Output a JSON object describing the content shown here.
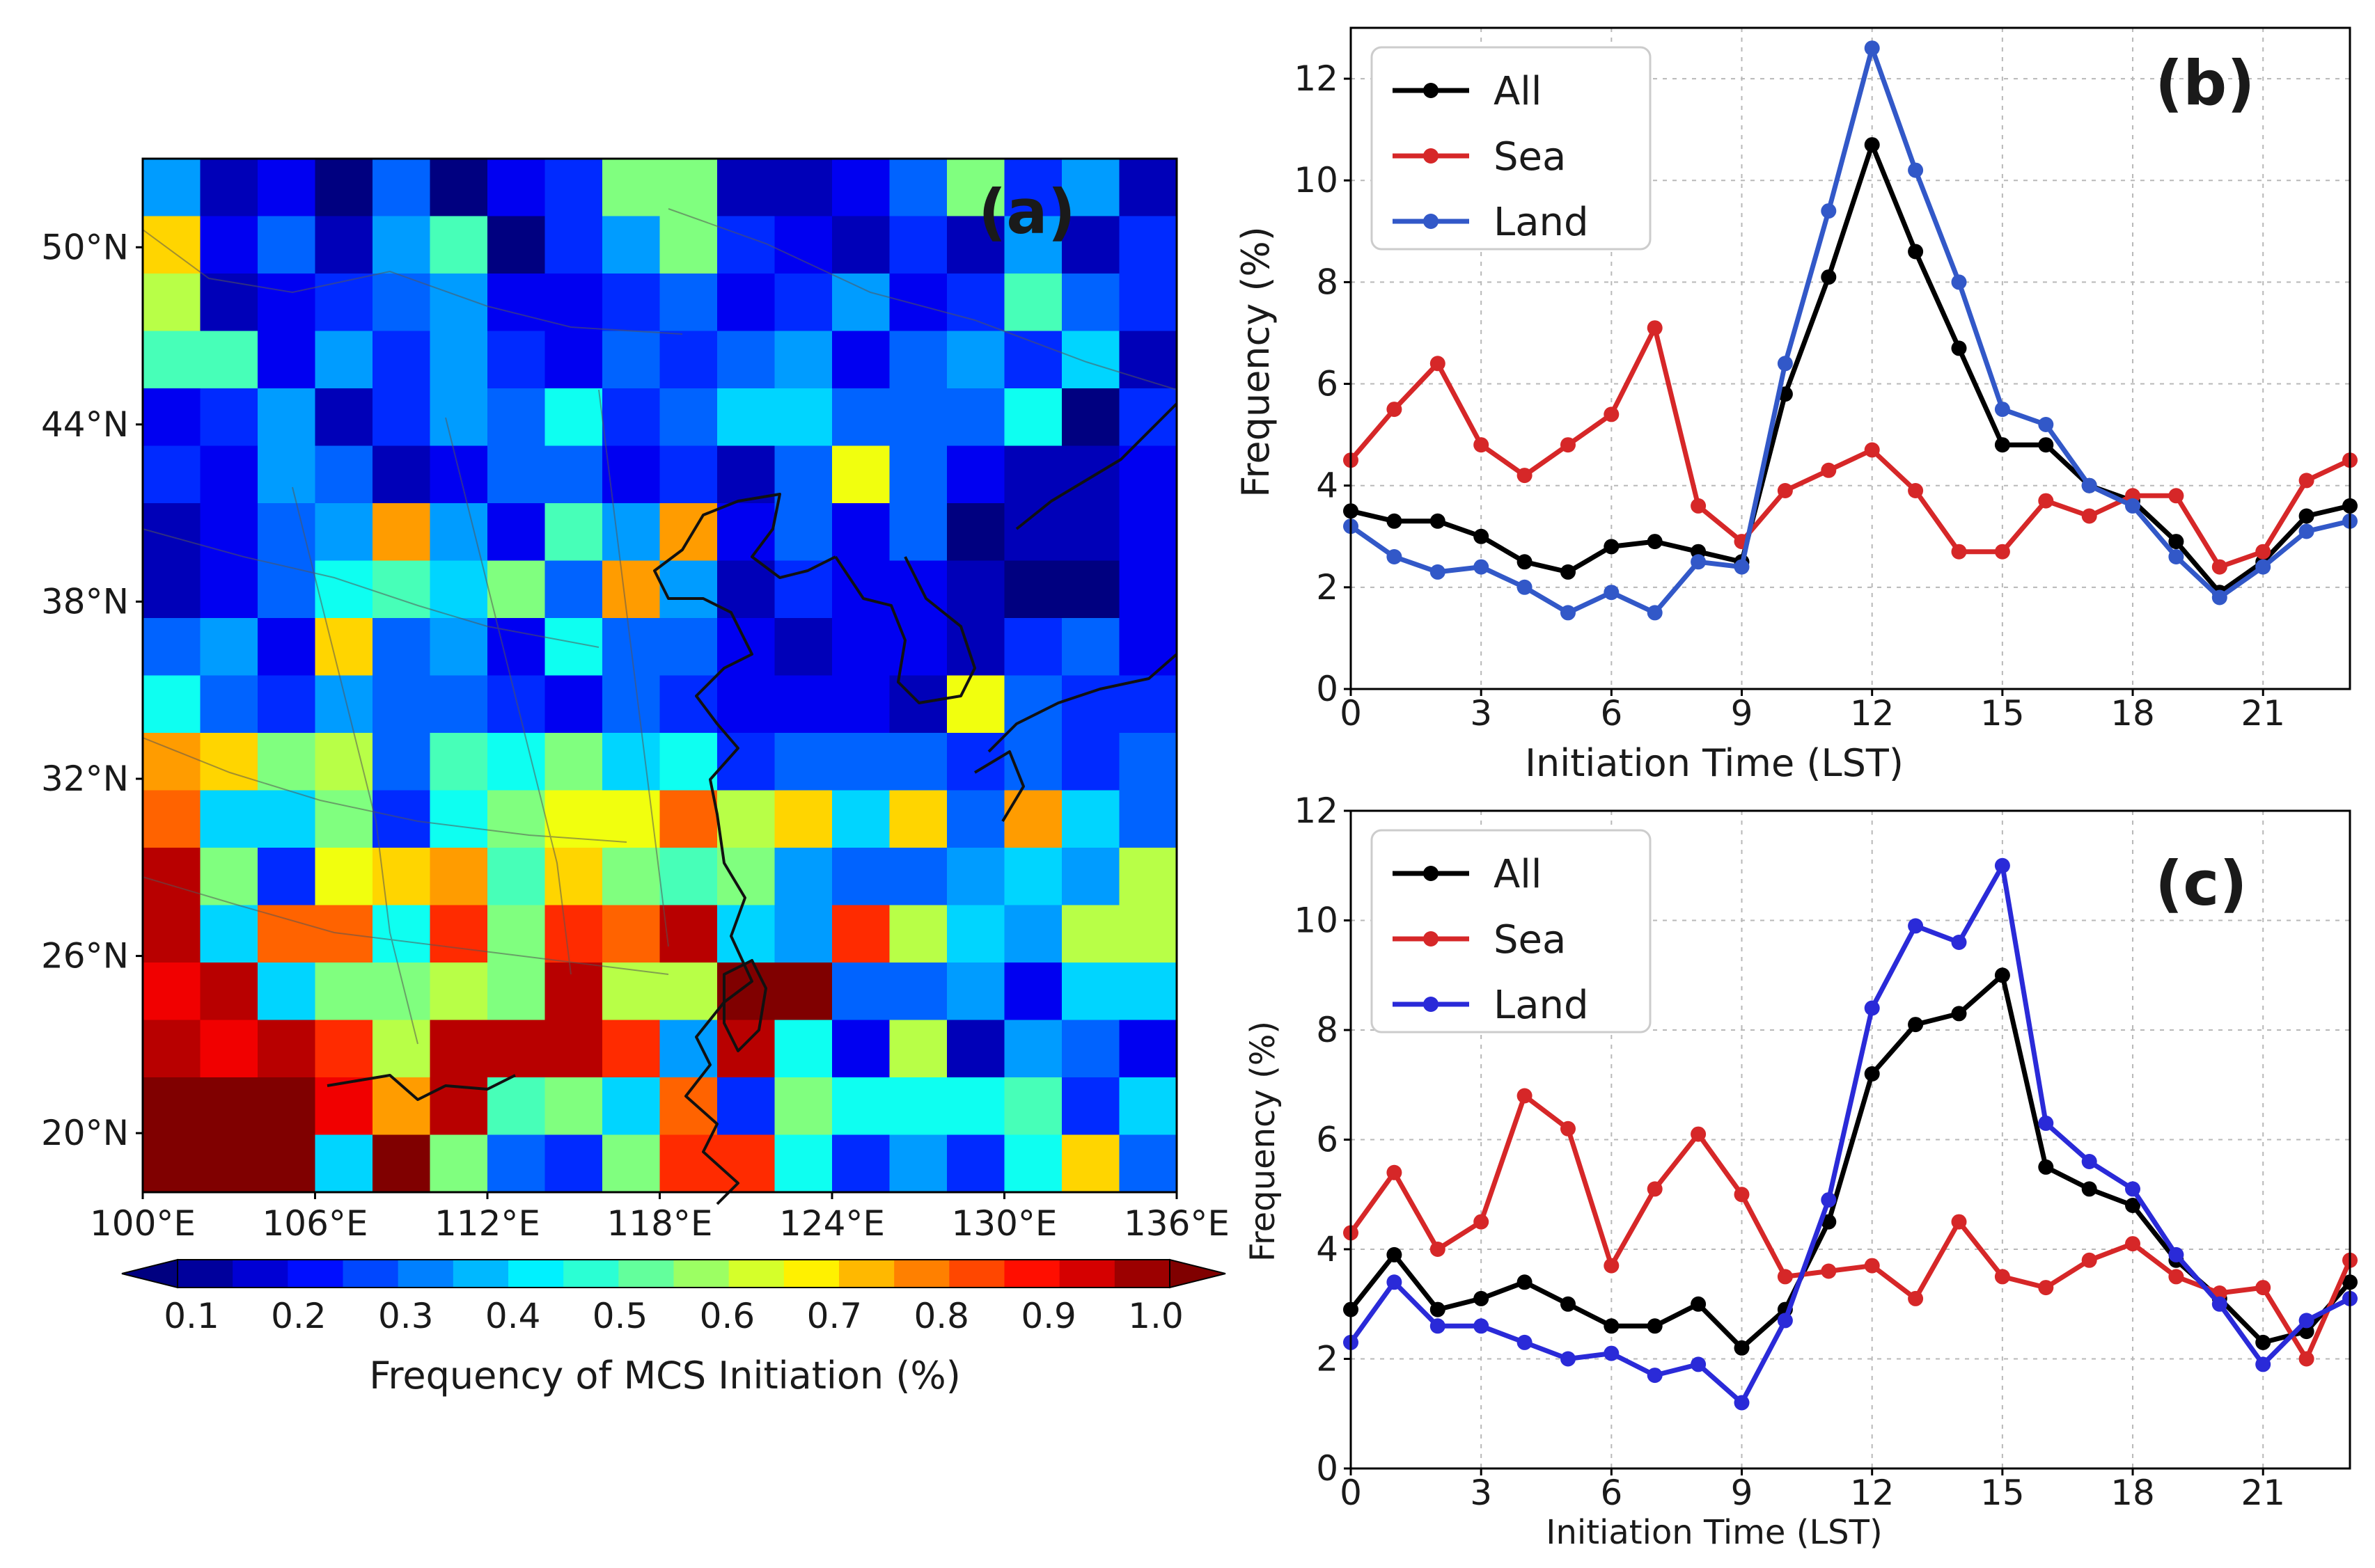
{
  "chart_data": [
    {
      "panel": "(a)",
      "type": "heatmap",
      "title": "",
      "xlabel": "",
      "ylabel": "",
      "x_ticks": [
        "100°E",
        "106°E",
        "112°E",
        "118°E",
        "124°E",
        "130°E",
        "136°E"
      ],
      "y_ticks": [
        "50°N",
        "44°N",
        "38°N",
        "32°N",
        "26°N",
        "20°N"
      ],
      "lon_range": [
        100,
        136
      ],
      "lat_range": [
        18,
        53
      ],
      "grid": "18 columns x 18 rows, cell values = frequency of MCS initiation (%), rows listed north to south",
      "values": [
        [
          0.35,
          0.15,
          0.2,
          0.1,
          0.3,
          0.1,
          0.2,
          0.25,
          0.55,
          0.55,
          0.15,
          0.15,
          0.2,
          0.3,
          0.55,
          0.25,
          0.35,
          0.15
        ],
        [
          0.7,
          0.2,
          0.3,
          0.15,
          0.35,
          0.5,
          0.1,
          0.25,
          0.35,
          0.55,
          0.25,
          0.2,
          0.15,
          0.25,
          0.15,
          0.35,
          0.15,
          0.25
        ],
        [
          0.6,
          0.15,
          0.2,
          0.25,
          0.3,
          0.35,
          0.2,
          0.2,
          0.25,
          0.3,
          0.2,
          0.25,
          0.35,
          0.2,
          0.25,
          0.5,
          0.3,
          0.25
        ],
        [
          0.5,
          0.5,
          0.2,
          0.35,
          0.25,
          0.35,
          0.25,
          0.2,
          0.3,
          0.25,
          0.3,
          0.35,
          0.2,
          0.3,
          0.35,
          0.25,
          0.4,
          0.15
        ],
        [
          0.2,
          0.25,
          0.35,
          0.15,
          0.25,
          0.35,
          0.3,
          0.45,
          0.25,
          0.3,
          0.4,
          0.4,
          0.3,
          0.3,
          0.3,
          0.45,
          0.1,
          0.25
        ],
        [
          0.25,
          0.2,
          0.35,
          0.3,
          0.15,
          0.2,
          0.3,
          0.3,
          0.2,
          0.25,
          0.15,
          0.3,
          0.65,
          0.3,
          0.2,
          0.15,
          0.15,
          0.2
        ],
        [
          0.15,
          0.2,
          0.3,
          0.35,
          0.75,
          0.35,
          0.2,
          0.5,
          0.35,
          0.75,
          0.2,
          0.3,
          0.2,
          0.3,
          0.1,
          0.15,
          0.15,
          0.2
        ],
        [
          0.15,
          0.2,
          0.3,
          0.45,
          0.5,
          0.4,
          0.55,
          0.3,
          0.75,
          0.35,
          0.15,
          0.25,
          0.2,
          0.2,
          0.15,
          0.1,
          0.1,
          0.2
        ],
        [
          0.3,
          0.35,
          0.2,
          0.7,
          0.3,
          0.35,
          0.2,
          0.45,
          0.3,
          0.3,
          0.2,
          0.15,
          0.2,
          0.2,
          0.15,
          0.25,
          0.3,
          0.2
        ],
        [
          0.45,
          0.3,
          0.25,
          0.35,
          0.3,
          0.3,
          0.25,
          0.2,
          0.3,
          0.25,
          0.2,
          0.2,
          0.2,
          0.15,
          0.65,
          0.3,
          0.25,
          0.25
        ],
        [
          0.75,
          0.7,
          0.55,
          0.6,
          0.3,
          0.5,
          0.45,
          0.55,
          0.4,
          0.45,
          0.25,
          0.3,
          0.3,
          0.3,
          0.25,
          0.3,
          0.25,
          0.3
        ],
        [
          0.8,
          0.4,
          0.4,
          0.55,
          0.25,
          0.45,
          0.55,
          0.65,
          0.65,
          0.8,
          0.6,
          0.7,
          0.4,
          0.7,
          0.3,
          0.75,
          0.4,
          0.3
        ],
        [
          0.95,
          0.55,
          0.25,
          0.65,
          0.7,
          0.75,
          0.5,
          0.7,
          0.55,
          0.5,
          0.55,
          0.35,
          0.3,
          0.3,
          0.35,
          0.4,
          0.35,
          0.6
        ],
        [
          0.95,
          0.4,
          0.8,
          0.8,
          0.45,
          0.85,
          0.55,
          0.85,
          0.8,
          0.95,
          0.4,
          0.35,
          0.85,
          0.6,
          0.4,
          0.35,
          0.6,
          0.6
        ],
        [
          0.9,
          0.95,
          0.4,
          0.55,
          0.55,
          0.6,
          0.55,
          0.95,
          0.6,
          0.6,
          1.0,
          1.0,
          0.3,
          0.3,
          0.35,
          0.2,
          0.4,
          0.4
        ],
        [
          0.95,
          0.9,
          0.95,
          0.85,
          0.6,
          0.95,
          0.95,
          0.95,
          0.85,
          0.35,
          0.95,
          0.45,
          0.2,
          0.6,
          0.15,
          0.35,
          0.3,
          0.2
        ],
        [
          1.0,
          1.0,
          1.0,
          0.9,
          0.75,
          0.95,
          0.5,
          0.55,
          0.4,
          0.8,
          0.25,
          0.55,
          0.45,
          0.45,
          0.45,
          0.5,
          0.25,
          0.4
        ],
        [
          1.0,
          1.0,
          1.0,
          0.4,
          1.0,
          0.55,
          0.3,
          0.25,
          0.55,
          0.85,
          0.85,
          0.45,
          0.25,
          0.35,
          0.25,
          0.45,
          0.7,
          0.3
        ]
      ],
      "colorbar": {
        "label": "Frequency of MCS Initiation (%)",
        "ticks": [
          "0.1",
          "0.2",
          "0.3",
          "0.4",
          "0.5",
          "0.6",
          "0.7",
          "0.8",
          "0.9",
          "1.0"
        ],
        "range": [
          0.1,
          1.0
        ],
        "colormap": "jet"
      }
    },
    {
      "panel": "(b)",
      "type": "line",
      "xlabel": "Initiation Time (LST)",
      "ylabel": "Frequency (%)",
      "x": [
        0,
        1,
        2,
        3,
        4,
        5,
        6,
        7,
        8,
        9,
        10,
        11,
        12,
        13,
        14,
        15,
        16,
        17,
        18,
        19,
        20,
        21,
        22,
        23
      ],
      "x_ticks": [
        0,
        3,
        6,
        9,
        12,
        15,
        18,
        21
      ],
      "xlim": [
        0,
        23
      ],
      "y_ticks": [
        0,
        2,
        4,
        6,
        8,
        10,
        12
      ],
      "ylim": [
        0,
        13
      ],
      "legend": "top-left",
      "series": [
        {
          "name": "All",
          "color": "#000000",
          "values": [
            3.5,
            3.3,
            3.3,
            3.0,
            2.5,
            2.3,
            2.8,
            2.9,
            2.7,
            2.5,
            5.8,
            8.1,
            10.7,
            8.6,
            6.7,
            4.8,
            4.8,
            4.0,
            3.7,
            2.9,
            1.9,
            2.5,
            3.4,
            3.6
          ]
        },
        {
          "name": "Sea",
          "color": "#d62728",
          "values": [
            4.5,
            5.5,
            6.4,
            4.8,
            4.2,
            4.8,
            5.4,
            7.1,
            3.6,
            2.9,
            3.9,
            4.3,
            4.7,
            3.9,
            2.7,
            2.7,
            3.7,
            3.4,
            3.8,
            3.8,
            2.4,
            2.7,
            4.1,
            4.5
          ]
        },
        {
          "name": "Land",
          "color": "#3258c8",
          "values": [
            3.2,
            2.6,
            2.3,
            2.4,
            2.0,
            1.5,
            1.9,
            1.5,
            2.5,
            2.4,
            6.4,
            9.4,
            12.6,
            10.2,
            8.0,
            5.5,
            5.2,
            4.0,
            3.6,
            2.6,
            1.8,
            2.4,
            3.1,
            3.3
          ]
        }
      ]
    },
    {
      "panel": "(c)",
      "type": "line",
      "xlabel": "Initiation Time (LST)",
      "ylabel": "Frequency (%)",
      "x": [
        0,
        1,
        2,
        3,
        4,
        5,
        6,
        7,
        8,
        9,
        10,
        11,
        12,
        13,
        14,
        15,
        16,
        17,
        18,
        19,
        20,
        21,
        22,
        23
      ],
      "x_ticks": [
        0,
        3,
        6,
        9,
        12,
        15,
        18,
        21
      ],
      "xlim": [
        0,
        23
      ],
      "y_ticks": [
        0,
        2,
        4,
        6,
        8,
        10,
        12
      ],
      "ylim": [
        0,
        12
      ],
      "legend": "top-left",
      "series": [
        {
          "name": "All",
          "color": "#000000",
          "values": [
            2.9,
            3.9,
            2.9,
            3.1,
            3.4,
            3.0,
            2.6,
            2.6,
            3.0,
            2.2,
            2.9,
            4.5,
            7.2,
            8.1,
            8.3,
            9.0,
            5.5,
            5.1,
            4.8,
            3.8,
            3.1,
            2.3,
            2.5,
            3.4
          ]
        },
        {
          "name": "Sea",
          "color": "#d62728",
          "values": [
            4.3,
            5.4,
            4.0,
            4.5,
            6.8,
            6.2,
            3.7,
            5.1,
            6.1,
            5.0,
            3.5,
            3.6,
            3.7,
            3.1,
            4.5,
            3.5,
            3.3,
            3.8,
            4.1,
            3.5,
            3.2,
            3.3,
            2.0,
            3.8
          ]
        },
        {
          "name": "Land",
          "color": "#2a2ad8",
          "values": [
            2.3,
            3.4,
            2.6,
            2.6,
            2.3,
            2.0,
            2.1,
            1.7,
            1.9,
            1.2,
            2.7,
            4.9,
            8.4,
            9.9,
            9.6,
            11.0,
            6.3,
            5.6,
            5.1,
            3.9,
            3.0,
            1.9,
            2.7,
            3.1
          ]
        }
      ]
    }
  ]
}
